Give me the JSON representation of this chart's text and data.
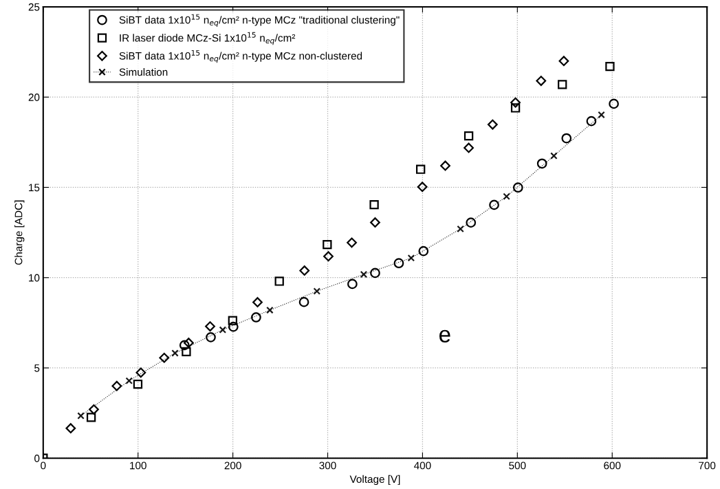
{
  "chart_data": {
    "type": "scatter",
    "xlabel": "Voltage [V]",
    "ylabel": "Charge [ADC]",
    "xlim": [
      0,
      700
    ],
    "xticks": [
      0,
      100,
      200,
      300,
      400,
      500,
      600,
      700
    ],
    "ylim": [
      0,
      25
    ],
    "yticks": [
      0,
      5,
      10,
      15,
      20,
      25
    ],
    "grid": true,
    "legend": "top left",
    "annotations": [
      "e"
    ],
    "series": [
      {
        "name": "SiBT data 1x10$^{15}$ n$_{eq}$/cm² n-type MCz \"traditional clustering\"",
        "marker": "circle",
        "color": "#000000",
        "x": [
          149,
          176.7,
          200.5,
          224.5,
          275,
          326,
          350,
          375,
          401,
          451,
          475.5,
          500.7,
          526,
          551.8,
          578,
          601.7
        ],
        "values": [
          6.26,
          6.7,
          7.28,
          7.8,
          8.65,
          9.65,
          10.26,
          10.8,
          11.47,
          13.05,
          14.03,
          14.99,
          16.32,
          17.72,
          18.67,
          19.63
        ]
      },
      {
        "name": "IR laser diode MCz-Si 1x10$^{15}$ n$_{eq}$/cm²",
        "marker": "square",
        "color": "#000000",
        "x": [
          0,
          50.6,
          99.8,
          150.9,
          199.8,
          249,
          299.5,
          349,
          398,
          448.7,
          498,
          547.4,
          597.6
        ],
        "values": [
          0,
          2.26,
          4.1,
          5.9,
          7.62,
          9.8,
          11.83,
          14.04,
          16.0,
          17.85,
          19.4,
          20.7,
          21.7
        ]
      },
      {
        "name": "SiBT data 1x10$^{15}$ n$_{eq}$/cm² n-type MCz non-clustered",
        "marker": "diamond",
        "color": "#000000",
        "x": [
          29,
          53.4,
          77.6,
          103,
          127.6,
          153.4,
          176,
          226,
          275.5,
          300.7,
          325.4,
          350,
          399.8,
          424,
          448.7,
          473.9,
          498,
          525,
          549
        ],
        "values": [
          1.66,
          2.7,
          4.0,
          4.74,
          5.56,
          6.39,
          7.3,
          8.64,
          10.39,
          11.18,
          11.94,
          13.06,
          15.03,
          16.2,
          17.19,
          18.48,
          19.7,
          20.9,
          22.0
        ]
      },
      {
        "name": "Simulation",
        "type": "line",
        "marker": "cross",
        "line_style": "dotted",
        "color": "#000000",
        "x": [
          39.7,
          90.6,
          139,
          189.3,
          239,
          288.6,
          338,
          388,
          440,
          488.6,
          538.5,
          588.6
        ],
        "values": [
          2.35,
          4.29,
          5.82,
          7.11,
          8.2,
          9.25,
          10.18,
          11.09,
          12.7,
          14.5,
          16.75,
          19.02
        ]
      }
    ]
  }
}
